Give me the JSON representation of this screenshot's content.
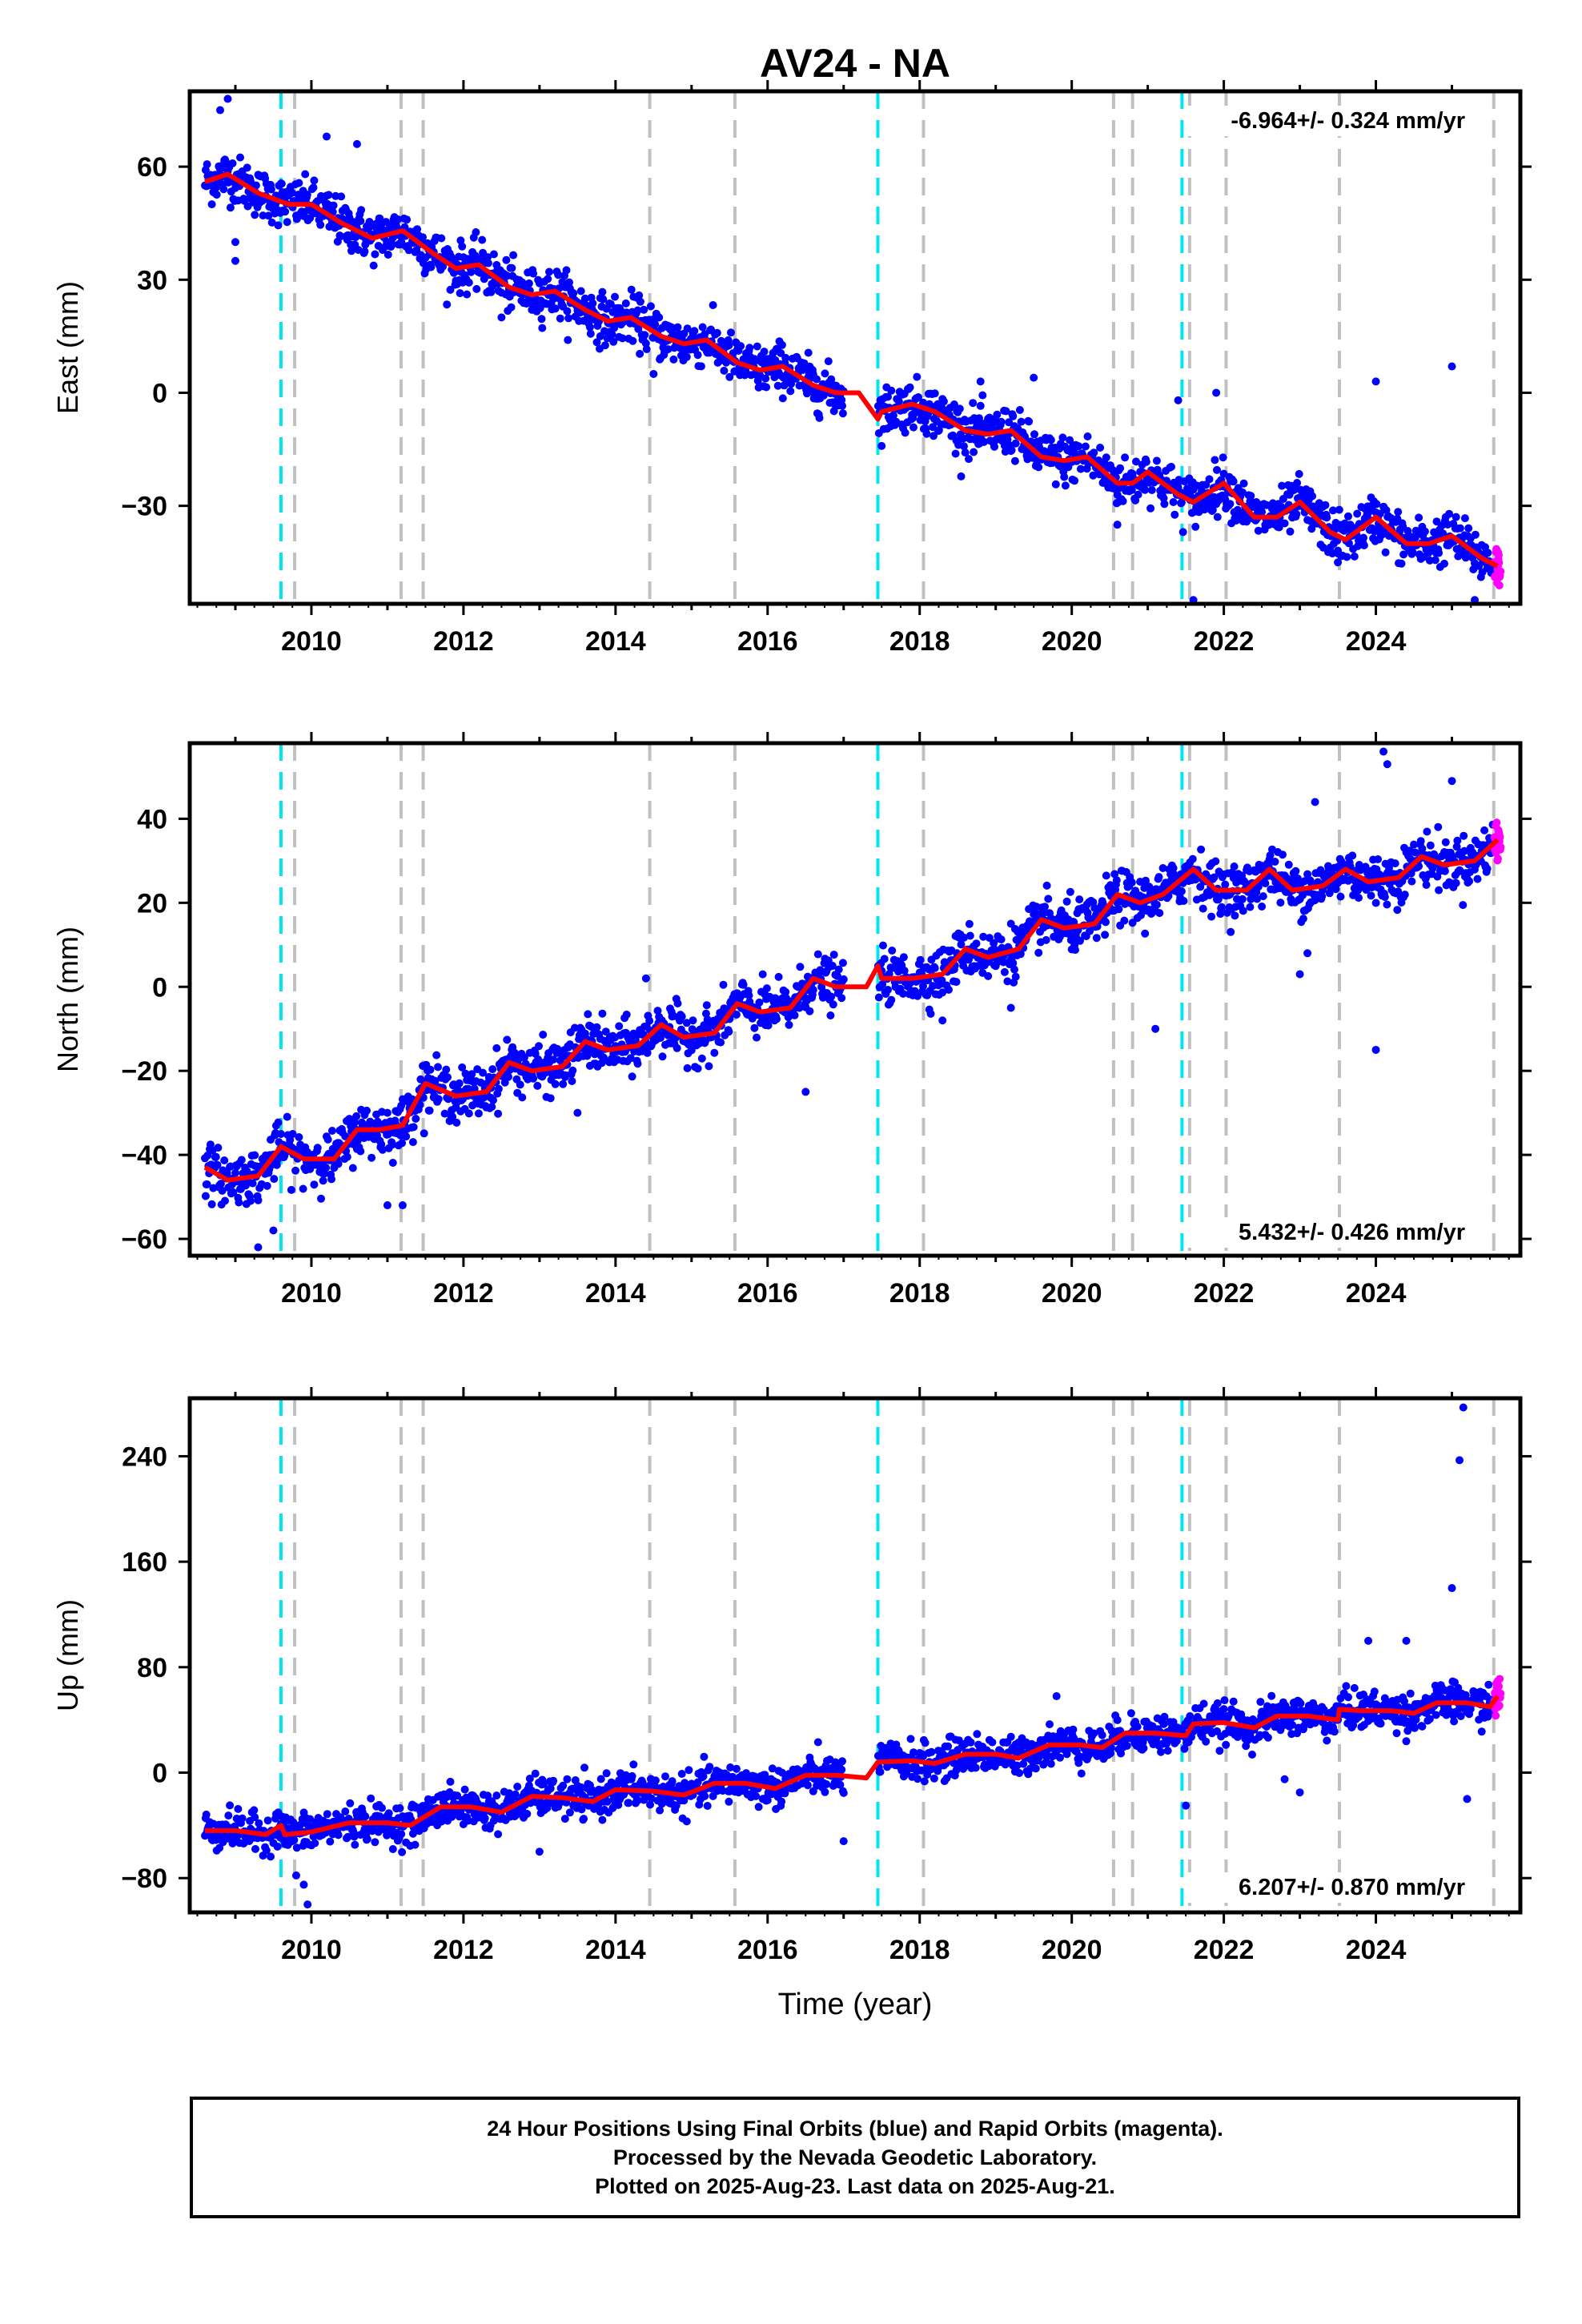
{
  "title": "AV24 - NA",
  "xlabel": "Time (year)",
  "footer": {
    "line1": "24 Hour Positions Using Final Orbits (blue) and Rapid Orbits (magenta).",
    "line2": "Processed by the Nevada Geodetic Laboratory.",
    "line3": "Plotted on 2025-Aug-23. Last data on 2025-Aug-21."
  },
  "colors": {
    "final_orbits": "#0000ff",
    "rapid_orbits": "#ff00ff",
    "model": "#ff0000",
    "equipment_change": "#c0c0c0",
    "earthquake": "#00e5ee"
  },
  "chart_data": [
    {
      "type": "scatter",
      "panel": "east",
      "ylabel": "East (mm)",
      "rate_label": "-6.964+/- 0.324 mm/yr",
      "xlim": [
        2008.4,
        2025.9
      ],
      "ylim": [
        -56,
        80
      ],
      "yticks": [
        -30,
        0,
        30,
        60
      ],
      "xticks": [
        2010,
        2012,
        2014,
        2016,
        2018,
        2020,
        2022,
        2024
      ],
      "grid": false,
      "rate_mm_per_yr": -6.964,
      "model_points": [
        [
          2008.6,
          56
        ],
        [
          2008.9,
          58
        ],
        [
          2009.3,
          53
        ],
        [
          2009.7,
          50
        ],
        [
          2010.0,
          50
        ],
        [
          2010.4,
          45
        ],
        [
          2010.8,
          41
        ],
        [
          2011.2,
          43
        ],
        [
          2011.6,
          37
        ],
        [
          2011.9,
          33
        ],
        [
          2012.2,
          34
        ],
        [
          2012.6,
          28
        ],
        [
          2012.9,
          26
        ],
        [
          2013.2,
          27
        ],
        [
          2013.6,
          22
        ],
        [
          2013.9,
          19
        ],
        [
          2014.2,
          20
        ],
        [
          2014.6,
          15
        ],
        [
          2014.9,
          13
        ],
        [
          2015.2,
          14
        ],
        [
          2015.6,
          8
        ],
        [
          2015.9,
          6
        ],
        [
          2016.2,
          7
        ],
        [
          2016.6,
          2
        ],
        [
          2016.9,
          0
        ],
        [
          2017.2,
          0
        ],
        [
          2017.45,
          -7
        ],
        [
          2017.5,
          -5
        ],
        [
          2017.9,
          -3
        ],
        [
          2018.2,
          -5
        ],
        [
          2018.6,
          -10
        ],
        [
          2018.9,
          -11
        ],
        [
          2019.2,
          -10
        ],
        [
          2019.6,
          -17
        ],
        [
          2019.9,
          -18
        ],
        [
          2020.2,
          -17
        ],
        [
          2020.6,
          -24
        ],
        [
          2020.8,
          -24
        ],
        [
          2021.0,
          -21
        ],
        [
          2021.4,
          -27
        ],
        [
          2021.6,
          -29
        ],
        [
          2022.0,
          -24
        ],
        [
          2022.4,
          -33
        ],
        [
          2022.7,
          -33
        ],
        [
          2023.0,
          -29
        ],
        [
          2023.4,
          -37
        ],
        [
          2023.6,
          -39
        ],
        [
          2024.0,
          -33
        ],
        [
          2024.4,
          -40
        ],
        [
          2024.7,
          -40
        ],
        [
          2025.0,
          -38
        ],
        [
          2025.4,
          -44
        ],
        [
          2025.6,
          -46
        ]
      ],
      "scatter_sd_mm": 3.2,
      "outliers": [
        [
          2008.8,
          75
        ],
        [
          2008.9,
          78
        ],
        [
          2009.0,
          35
        ],
        [
          2009.0,
          40
        ],
        [
          2010.2,
          68
        ],
        [
          2010.6,
          66
        ],
        [
          2012.5,
          20
        ],
        [
          2013.8,
          15
        ],
        [
          2014.5,
          5
        ],
        [
          2018.8,
          3
        ],
        [
          2019.5,
          4
        ],
        [
          2020.6,
          -35
        ],
        [
          2021.4,
          -2
        ],
        [
          2021.6,
          -55
        ],
        [
          2021.9,
          0
        ],
        [
          2023.5,
          -45
        ],
        [
          2024.0,
          3
        ],
        [
          2025.0,
          7
        ],
        [
          2025.3,
          -55
        ]
      ],
      "equipment_changes": [
        2009.78,
        2011.18,
        2011.47,
        2014.45,
        2015.57,
        2018.05,
        2020.55,
        2020.8,
        2021.55,
        2022.03,
        2023.52,
        2025.55
      ],
      "earthquakes": [
        2009.6,
        2017.45,
        2021.45
      ]
    },
    {
      "type": "scatter",
      "panel": "north",
      "ylabel": "North (mm)",
      "rate_label": "5.432+/- 0.426 mm/yr",
      "xlim": [
        2008.4,
        2025.9
      ],
      "ylim": [
        -64,
        58
      ],
      "yticks": [
        -60,
        -40,
        -20,
        0,
        20,
        40
      ],
      "xticks": [
        2010,
        2012,
        2014,
        2016,
        2018,
        2020,
        2022,
        2024
      ],
      "grid": false,
      "rate_mm_per_yr": 5.432,
      "model_points": [
        [
          2008.6,
          -43
        ],
        [
          2008.9,
          -46
        ],
        [
          2009.3,
          -45
        ],
        [
          2009.6,
          -38
        ],
        [
          2009.9,
          -41
        ],
        [
          2010.3,
          -41
        ],
        [
          2010.6,
          -34
        ],
        [
          2010.9,
          -34
        ],
        [
          2011.2,
          -33
        ],
        [
          2011.5,
          -23
        ],
        [
          2011.9,
          -26
        ],
        [
          2012.3,
          -25
        ],
        [
          2012.6,
          -18
        ],
        [
          2012.9,
          -20
        ],
        [
          2013.3,
          -19
        ],
        [
          2013.6,
          -13
        ],
        [
          2013.9,
          -15
        ],
        [
          2014.3,
          -14
        ],
        [
          2014.6,
          -9
        ],
        [
          2014.9,
          -12
        ],
        [
          2015.3,
          -11
        ],
        [
          2015.6,
          -4
        ],
        [
          2015.9,
          -6
        ],
        [
          2016.3,
          -5
        ],
        [
          2016.6,
          2
        ],
        [
          2016.9,
          0
        ],
        [
          2017.3,
          0
        ],
        [
          2017.45,
          5
        ],
        [
          2017.5,
          2
        ],
        [
          2017.9,
          2
        ],
        [
          2018.3,
          3
        ],
        [
          2018.6,
          9
        ],
        [
          2018.9,
          7
        ],
        [
          2019.3,
          9
        ],
        [
          2019.6,
          16
        ],
        [
          2019.9,
          14
        ],
        [
          2020.3,
          15
        ],
        [
          2020.6,
          22
        ],
        [
          2020.9,
          20
        ],
        [
          2021.2,
          22
        ],
        [
          2021.6,
          28
        ],
        [
          2021.9,
          23
        ],
        [
          2022.3,
          23
        ],
        [
          2022.6,
          28
        ],
        [
          2022.9,
          23
        ],
        [
          2023.3,
          24
        ],
        [
          2023.6,
          28
        ],
        [
          2023.9,
          25
        ],
        [
          2024.3,
          26
        ],
        [
          2024.6,
          31
        ],
        [
          2024.9,
          29
        ],
        [
          2025.3,
          30
        ],
        [
          2025.6,
          35
        ]
      ],
      "scatter_sd_mm": 3.0,
      "outliers": [
        [
          2009.3,
          -62
        ],
        [
          2009.5,
          -58
        ],
        [
          2011.0,
          -52
        ],
        [
          2011.2,
          -52
        ],
        [
          2013.5,
          -30
        ],
        [
          2014.4,
          2
        ],
        [
          2016.5,
          -25
        ],
        [
          2018.3,
          -8
        ],
        [
          2019.2,
          -5
        ],
        [
          2021.1,
          -10
        ],
        [
          2023.0,
          3
        ],
        [
          2023.1,
          8
        ],
        [
          2023.2,
          44
        ],
        [
          2024.0,
          -15
        ],
        [
          2024.1,
          56
        ],
        [
          2024.15,
          53
        ],
        [
          2025.0,
          49
        ]
      ],
      "equipment_changes": [
        2009.78,
        2011.18,
        2011.47,
        2014.45,
        2015.57,
        2018.05,
        2020.55,
        2020.8,
        2021.55,
        2022.03,
        2023.52,
        2025.55
      ],
      "earthquakes": [
        2009.6,
        2017.45,
        2021.45
      ]
    },
    {
      "type": "scatter",
      "panel": "up",
      "ylabel": "Up (mm)",
      "rate_label": "6.207+/- 0.870 mm/yr",
      "xlim": [
        2008.4,
        2025.9
      ],
      "ylim": [
        -106,
        284
      ],
      "yticks": [
        -80,
        0,
        80,
        160,
        240
      ],
      "xticks": [
        2010,
        2012,
        2014,
        2016,
        2018,
        2020,
        2022,
        2024
      ],
      "grid": false,
      "rate_mm_per_yr": 6.207,
      "model_points": [
        [
          2008.6,
          -44
        ],
        [
          2009.0,
          -44
        ],
        [
          2009.4,
          -47
        ],
        [
          2009.6,
          -40
        ],
        [
          2009.65,
          -47
        ],
        [
          2010.0,
          -45
        ],
        [
          2010.5,
          -38
        ],
        [
          2011.0,
          -38
        ],
        [
          2011.3,
          -40
        ],
        [
          2011.7,
          -26
        ],
        [
          2012.1,
          -26
        ],
        [
          2012.5,
          -30
        ],
        [
          2012.9,
          -18
        ],
        [
          2013.3,
          -19
        ],
        [
          2013.7,
          -22
        ],
        [
          2014.0,
          -13
        ],
        [
          2014.5,
          -14
        ],
        [
          2014.9,
          -17
        ],
        [
          2015.3,
          -8
        ],
        [
          2015.7,
          -8
        ],
        [
          2016.1,
          -12
        ],
        [
          2016.5,
          -2
        ],
        [
          2016.9,
          -2
        ],
        [
          2017.3,
          -4
        ],
        [
          2017.45,
          8
        ],
        [
          2017.9,
          9
        ],
        [
          2018.2,
          7
        ],
        [
          2018.6,
          14
        ],
        [
          2019.0,
          14
        ],
        [
          2019.3,
          11
        ],
        [
          2019.7,
          21
        ],
        [
          2020.1,
          21
        ],
        [
          2020.4,
          19
        ],
        [
          2020.7,
          30
        ],
        [
          2021.1,
          30
        ],
        [
          2021.5,
          28
        ],
        [
          2021.6,
          37
        ],
        [
          2022.0,
          38
        ],
        [
          2022.4,
          34
        ],
        [
          2022.7,
          43
        ],
        [
          2023.1,
          43
        ],
        [
          2023.5,
          40
        ],
        [
          2023.52,
          48
        ],
        [
          2023.8,
          47
        ],
        [
          2024.2,
          47
        ],
        [
          2024.5,
          45
        ],
        [
          2024.8,
          53
        ],
        [
          2025.2,
          53
        ],
        [
          2025.5,
          50
        ],
        [
          2025.6,
          58
        ]
      ],
      "scatter_sd_mm": 7.0,
      "outliers": [
        [
          2009.9,
          -85
        ],
        [
          2009.95,
          -100
        ],
        [
          2009.8,
          -78
        ],
        [
          2013.0,
          -60
        ],
        [
          2017.0,
          -52
        ],
        [
          2019.8,
          58
        ],
        [
          2021.5,
          -25
        ],
        [
          2022.8,
          -5
        ],
        [
          2023.0,
          -15
        ],
        [
          2023.9,
          100
        ],
        [
          2024.4,
          100
        ],
        [
          2025.0,
          140
        ],
        [
          2025.1,
          237
        ],
        [
          2025.15,
          277
        ],
        [
          2025.2,
          -20
        ]
      ],
      "equipment_changes": [
        2009.78,
        2011.18,
        2011.47,
        2014.45,
        2015.57,
        2018.05,
        2020.55,
        2020.8,
        2021.55,
        2022.03,
        2023.52,
        2025.55
      ],
      "earthquakes": [
        2009.6,
        2017.45,
        2021.45
      ]
    }
  ]
}
